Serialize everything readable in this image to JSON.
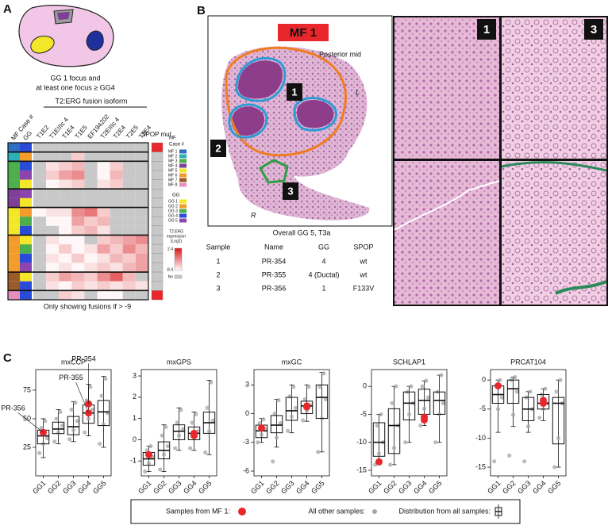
{
  "panels": [
    "A",
    "B",
    "C"
  ],
  "panel_a": {
    "caption": [
      "GG 1 focus and",
      "at least one focus ≥ GG4"
    ],
    "header_case": "MF Case #",
    "header_gg": "GG",
    "header_fusion": "T2:ERG fusion isoform",
    "header_spop": "SPOP mut",
    "isoforms": [
      "T1E2",
      "T1EIIIc 4",
      "T1E4",
      "T1E5",
      "EF194202",
      "T2EIIIc 4",
      "T2E4",
      "T2E5",
      "T3E4"
    ],
    "legend_case_title": [
      "MF",
      "Case #"
    ],
    "cases": [
      {
        "name": "MF 1",
        "color": "#2f6fc0"
      },
      {
        "name": "MF 2",
        "color": "#2bb0b8"
      },
      {
        "name": "MF 3",
        "color": "#4cae4c"
      },
      {
        "name": "MF 4",
        "color": "#7d3f98"
      },
      {
        "name": "MF 5",
        "color": "#f2e829"
      },
      {
        "name": "MF 6",
        "color": "#f39c2b"
      },
      {
        "name": "MF 7",
        "color": "#9b5a2a"
      },
      {
        "name": "MF 8",
        "color": "#e58fc0"
      }
    ],
    "legend_gg_title": "GG",
    "grades": [
      {
        "name": "GG 1",
        "color": "#f2e829"
      },
      {
        "name": "GG 2",
        "color": "#f39c2b"
      },
      {
        "name": "GG 3",
        "color": "#4cae4c"
      },
      {
        "name": "GG 4",
        "color": "#2a4bd7"
      },
      {
        "name": "GG 5",
        "color": "#8e44ad"
      }
    ],
    "rows": [
      {
        "case": "MF 1",
        "gg": "GG 4",
        "spop": true,
        "values": [
          null,
          null,
          null,
          null,
          null,
          null,
          null,
          null,
          null
        ]
      },
      {
        "case": "MF 2",
        "gg": "GG 2",
        "spop": false,
        "values": [
          null,
          null,
          null,
          -6,
          null,
          null,
          null,
          null,
          null
        ]
      },
      {
        "case": "MF 3",
        "gg": "GG 4",
        "spop": false,
        "values": [
          null,
          -7,
          -6,
          -5,
          null,
          -8,
          -6,
          null,
          null
        ]
      },
      {
        "case": "MF 3",
        "gg": "GG 5",
        "spop": false,
        "values": [
          null,
          -6,
          -4,
          -3,
          null,
          -8,
          -5,
          null,
          null
        ]
      },
      {
        "case": "MF 3",
        "gg": "GG 1",
        "spop": false,
        "values": [
          null,
          -8,
          -7,
          -6,
          null,
          -7,
          -6,
          null,
          null
        ]
      },
      {
        "case": "MF 4",
        "gg": "GG 5",
        "spop": false,
        "values": [
          null,
          null,
          null,
          null,
          null,
          null,
          null,
          null,
          null
        ]
      },
      {
        "case": "MF 4",
        "gg": "GG 1",
        "spop": false,
        "values": [
          null,
          null,
          null,
          null,
          null,
          null,
          null,
          null,
          null
        ]
      },
      {
        "case": "MF 5",
        "gg": "GG 2",
        "spop": false,
        "values": [
          -8,
          -7,
          -7,
          -3,
          -2,
          -6,
          null,
          null,
          null
        ]
      },
      {
        "case": "MF 5",
        "gg": "GG 3",
        "spop": false,
        "values": [
          null,
          -8,
          -8,
          -4,
          -6,
          -5,
          null,
          null,
          null
        ]
      },
      {
        "case": "MF 5",
        "gg": "GG 4",
        "spop": false,
        "values": [
          null,
          null,
          -8,
          -6,
          -5,
          -7,
          null,
          null,
          null
        ]
      },
      {
        "case": "MF 6",
        "gg": "GG 1",
        "spop": false,
        "values": [
          null,
          -7,
          -8,
          -8,
          null,
          -6,
          -5,
          -4,
          -3
        ]
      },
      {
        "case": "MF 6",
        "gg": "GG 3",
        "spop": false,
        "values": [
          null,
          -8,
          -6,
          -8,
          -7,
          -4,
          -6,
          -3,
          -5
        ]
      },
      {
        "case": "MF 6",
        "gg": "GG 4",
        "spop": false,
        "values": [
          null,
          -7,
          -8,
          -6,
          -8,
          -7,
          -5,
          -6,
          -4
        ]
      },
      {
        "case": "MF 6",
        "gg": "GG 5",
        "spop": false,
        "values": [
          null,
          -8,
          -7,
          -8,
          -7,
          -6,
          -7,
          -5,
          -4
        ]
      },
      {
        "case": "MF 7",
        "gg": "GG 1",
        "spop": false,
        "values": [
          null,
          -6,
          -4,
          -5,
          -6,
          -3,
          -1,
          -5,
          null
        ]
      },
      {
        "case": "MF 7",
        "gg": "GG 4",
        "spop": false,
        "values": [
          null,
          -7,
          -8,
          -6,
          -7,
          -6,
          -7,
          -6,
          -7
        ]
      },
      {
        "case": "MF 8",
        "gg": "GG 4",
        "spop": true,
        "values": [
          null,
          null,
          -6,
          -7,
          null,
          -8,
          -8,
          null,
          null
        ]
      }
    ],
    "scale": {
      "title": [
        "T2:ERG",
        "expression",
        "(Log2)"
      ],
      "max": 2.4,
      "min": -8.4,
      "no": "No",
      "min_color": "#ffffff",
      "max_color": "#d7191c",
      "no_color": "#c8c8c8"
    },
    "spop_color": "#e8262b",
    "footer": "Only showing fusions if > -9"
  },
  "panel_b": {
    "title": "MF 1",
    "orientation": "Posterior mid",
    "left": "L",
    "right": "R",
    "regions": [
      "1",
      "2",
      "3"
    ],
    "overall": "Overall GG 5, T3a",
    "table": {
      "header": [
        "Sample",
        "Name",
        "GG",
        "SPOP"
      ],
      "rows": [
        [
          "1",
          "PR-354",
          "4",
          "wt"
        ],
        [
          "2",
          "PR-355",
          "4 (Ductal)",
          "wt"
        ],
        [
          "3",
          "PR-356",
          "1",
          "F133V"
        ]
      ]
    },
    "zoom_labels": [
      "1",
      "3"
    ]
  },
  "chart_data": [
    {
      "type": "box",
      "title": "mxCCP",
      "categories": [
        "GG1",
        "GG2",
        "GG3",
        "GG4",
        "GG5"
      ],
      "ylim": [
        0,
        93
      ],
      "yticks": [
        25,
        50,
        75
      ],
      "boxes": {
        "low": [
          16,
          28,
          30,
          35,
          25
        ],
        "q1": [
          28,
          37,
          36,
          46,
          44
        ],
        "median": [
          35,
          41,
          43,
          55,
          56
        ],
        "q3": [
          40,
          47,
          52,
          62,
          66
        ],
        "high": [
          50,
          58,
          65,
          80,
          87
        ]
      },
      "points": [
        [
          20,
          28,
          33,
          42,
          48
        ],
        [
          30,
          38,
          44,
          50,
          56
        ],
        [
          32,
          40,
          48,
          58,
          64
        ],
        [
          38,
          50,
          58,
          66,
          78
        ],
        [
          28,
          45,
          55,
          70,
          85
        ]
      ],
      "highlight": {
        "x": [
          "GG1",
          "GG4",
          "GG4"
        ],
        "values": [
          38,
          55,
          63
        ],
        "labels": [
          "PR-356",
          "PR-355",
          "PR-354"
        ]
      }
    },
    {
      "type": "box",
      "title": "mxGPS",
      "categories": [
        "GG1",
        "GG2",
        "GG3",
        "GG4",
        "GG5"
      ],
      "ylim": [
        -1.7,
        3.3
      ],
      "yticks": [
        -1,
        0,
        1,
        2,
        3
      ],
      "boxes": {
        "low": [
          -1.5,
          -1.5,
          -0.5,
          -0.5,
          -0.7
        ],
        "q1": [
          -1.2,
          -0.9,
          0,
          0,
          0.3
        ],
        "median": [
          -0.9,
          -0.5,
          0.4,
          0.3,
          0.8
        ],
        "q3": [
          -0.6,
          -0.1,
          0.7,
          0.6,
          1.3
        ],
        "high": [
          -0.3,
          0.7,
          1.5,
          1.3,
          2.8
        ]
      },
      "points": [
        [
          -1.5,
          -1.1,
          -0.8,
          -0.5,
          -0.3
        ],
        [
          -1.4,
          -0.7,
          -0.3,
          0.2,
          0.6
        ],
        [
          -0.4,
          0.2,
          0.5,
          0.8,
          1.4
        ],
        [
          -0.4,
          0.1,
          0.4,
          0.8,
          1.2
        ],
        [
          -0.6,
          0.4,
          0.9,
          1.5,
          2.7
        ]
      ],
      "highlight": {
        "x": [
          "GG1",
          "GG4",
          "GG4"
        ],
        "values": [
          -0.7,
          0.2,
          0.3
        ]
      }
    },
    {
      "type": "box",
      "title": "mxGC",
      "categories": [
        "GG1",
        "GG2",
        "GG3",
        "GG4",
        "GG5"
      ],
      "ylim": [
        -6.5,
        4.6
      ],
      "yticks": [
        -6,
        -3,
        0,
        3
      ],
      "boxes": {
        "low": [
          -3,
          -3.5,
          -2,
          -0.8,
          -4
        ],
        "q1": [
          -2.5,
          -2,
          -0.7,
          0,
          -0.5
        ],
        "median": [
          -1.8,
          -1.2,
          0.3,
          0.8,
          1.7
        ],
        "q3": [
          -1.2,
          -0.2,
          1.7,
          1.3,
          3
        ],
        "high": [
          -0.5,
          1.5,
          3,
          3,
          4.3
        ]
      },
      "points": [
        [
          -3,
          -2.2,
          -1.6,
          -1,
          -0.6
        ],
        [
          -5,
          -2.5,
          -1,
          0,
          1.4
        ],
        [
          -1.8,
          -0.3,
          0.6,
          1.8,
          2.8
        ],
        [
          -0.7,
          0.3,
          0.9,
          1.5,
          2.8
        ],
        [
          -4,
          -0.5,
          1.5,
          2.8,
          4.2
        ]
      ],
      "highlight": {
        "x": [
          "GG1",
          "GG4",
          "GG4"
        ],
        "values": [
          -1.5,
          0.8,
          0.7
        ]
      }
    },
    {
      "type": "box",
      "title": "SCHLAP1",
      "categories": [
        "GG1",
        "GG2",
        "GG3",
        "GG4",
        "GG5"
      ],
      "ylim": [
        -16,
        3
      ],
      "yticks": [
        -15,
        -10,
        -5,
        0
      ],
      "boxes": {
        "low": [
          -14,
          -14,
          -10,
          -7,
          -10
        ],
        "q1": [
          -12.5,
          -12,
          -6,
          -5,
          -5
        ],
        "median": [
          -10,
          -7,
          -3,
          -2.5,
          -2.5
        ],
        "q3": [
          -6.5,
          -4,
          -1,
          -0.5,
          -1
        ],
        "high": [
          -5,
          0,
          0,
          1,
          2
        ]
      },
      "points": [
        [
          -14,
          -12,
          -10,
          -7,
          -5
        ],
        [
          -14,
          -11,
          -7,
          -3,
          0
        ],
        [
          -10,
          -5,
          -3,
          -1,
          0
        ],
        [
          -7,
          -4,
          -2,
          0,
          1
        ],
        [
          -10,
          -5,
          -3,
          -1,
          2
        ]
      ],
      "highlight": {
        "x": [
          "GG1",
          "GG4",
          "GG4"
        ],
        "values": [
          -13.5,
          -5.5,
          -6
        ]
      }
    },
    {
      "type": "box",
      "title": "PRCAT104",
      "categories": [
        "GG1",
        "GG2",
        "GG3",
        "GG4",
        "GG5"
      ],
      "ylim": [
        -16.5,
        1.8
      ],
      "yticks": [
        -15,
        -10,
        -5,
        0
      ],
      "boxes": {
        "low": [
          -9,
          -8,
          -9,
          -7,
          -15
        ],
        "q1": [
          -4,
          -4,
          -7,
          -5,
          -11
        ],
        "median": [
          -2.5,
          -1.5,
          -5,
          -4,
          -4
        ],
        "q3": [
          -1,
          0,
          -3,
          -2.5,
          -3
        ],
        "high": [
          0,
          0.5,
          -2,
          -1.5,
          0
        ]
      },
      "points": [
        [
          -14,
          -5,
          -3,
          -1,
          0
        ],
        [
          -13,
          -6,
          -2,
          0,
          0.5
        ],
        [
          -14,
          -8,
          -5,
          -3,
          -2
        ],
        [
          -6.5,
          -5,
          -4,
          -2.5,
          -1.5
        ],
        [
          -15,
          -10,
          -4,
          -2,
          0
        ]
      ],
      "highlight": {
        "x": [
          "GG1",
          "GG4",
          "GG4"
        ],
        "values": [
          -1,
          -4,
          -3.5
        ]
      }
    }
  ],
  "chart_colors": {
    "box": "#111111",
    "point": "#a6a6a6",
    "highlight": "#e8262b"
  },
  "legend": {
    "mf1": "Samples from MF 1:",
    "others": "All other samples:",
    "distribution": "Distribution from all samples:"
  }
}
